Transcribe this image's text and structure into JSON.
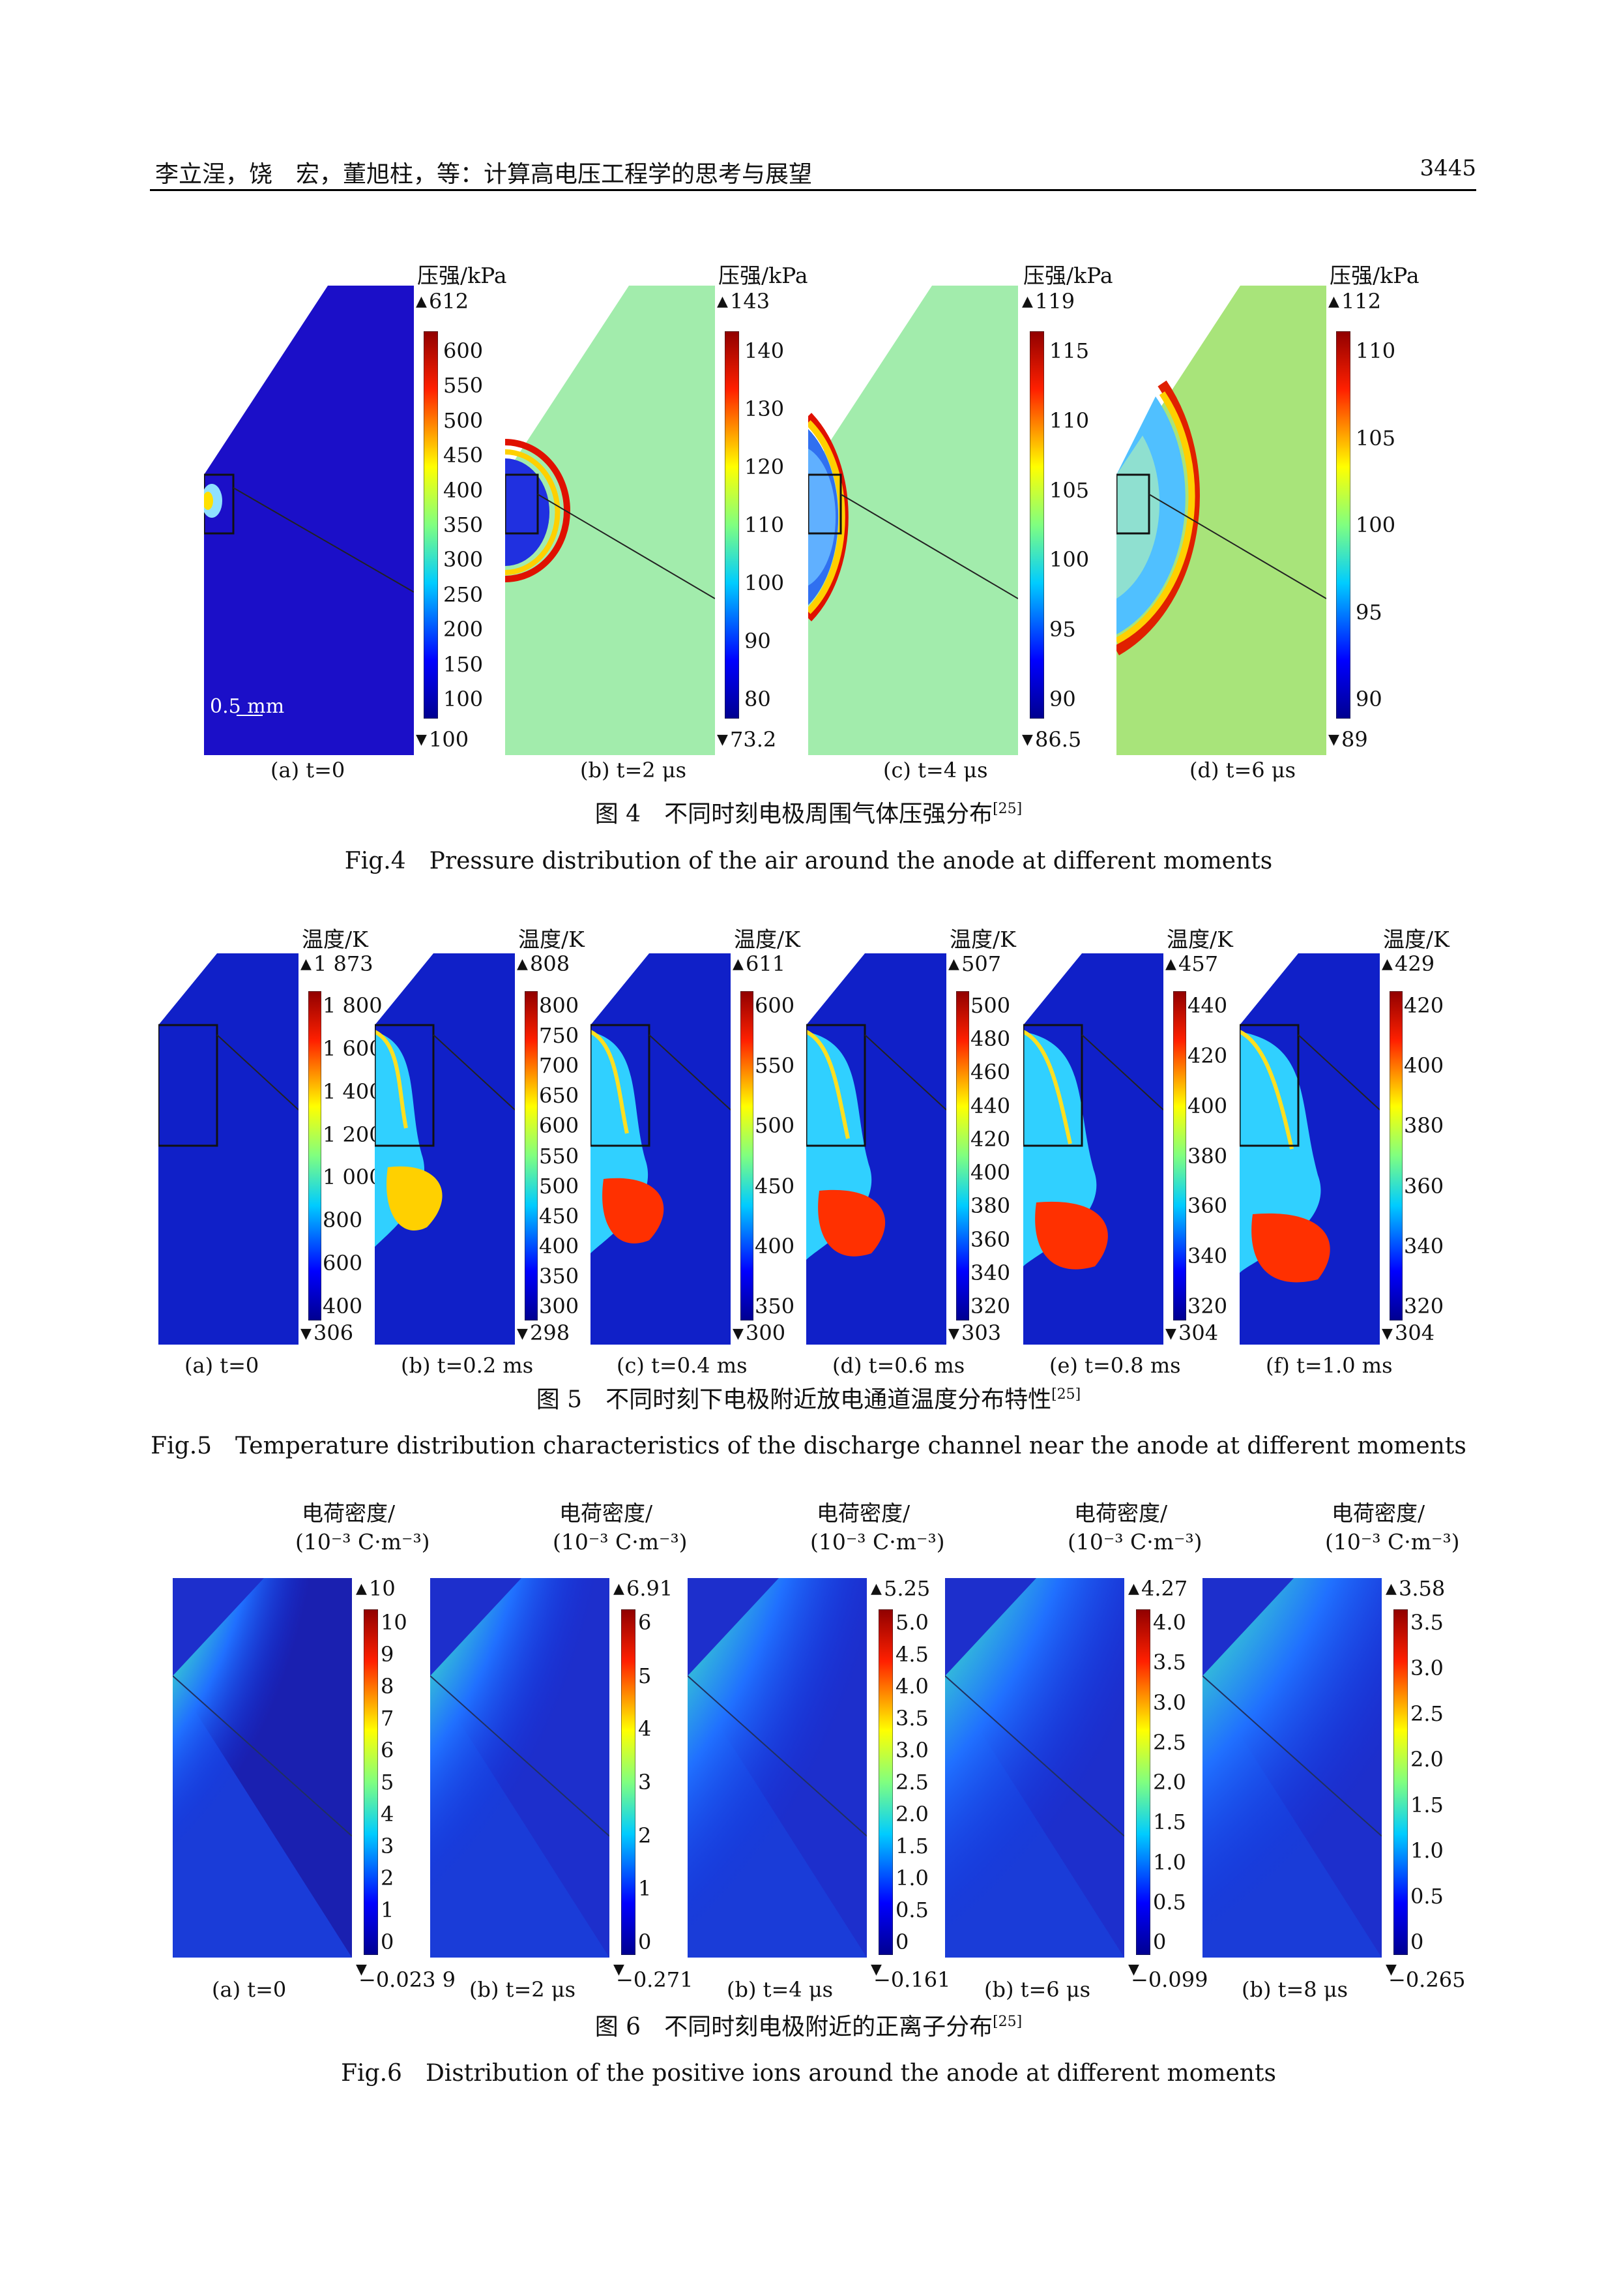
{
  "header": {
    "left": "李立浧，饶　宏，董旭柱，等：计算高电压工程学的思考与展望",
    "right": "3445"
  },
  "fig4": {
    "caption_cn": "图 4　不同时刻电极周围气体压强分布",
    "caption_cn_ref": "[25]",
    "caption_en": "Fig.4　Pressure distribution of the air around the anode at different moments",
    "scale_label": "0.5 mm",
    "panels": [
      {
        "label": "(a) t=0",
        "cb_title": "压强/kPa",
        "max": "612",
        "min": "100",
        "ticks": [
          "600",
          "550",
          "500",
          "450",
          "400",
          "350",
          "300",
          "250",
          "200",
          "150",
          "100"
        ]
      },
      {
        "label": "(b) t=2 μs",
        "cb_title": "压强/kPa",
        "max": "143",
        "min": "73.2",
        "ticks": [
          "140",
          "130",
          "120",
          "110",
          "100",
          "90",
          "80"
        ]
      },
      {
        "label": "(c) t=4 μs",
        "cb_title": "压强/kPa",
        "max": "119",
        "min": "86.5",
        "ticks": [
          "115",
          "110",
          "105",
          "100",
          "95",
          "90"
        ]
      },
      {
        "label": "(d) t=6 μs",
        "cb_title": "压强/kPa",
        "max": "112",
        "min": "89",
        "ticks": [
          "110",
          "105",
          "100",
          "95",
          "90"
        ]
      }
    ]
  },
  "fig5": {
    "caption_cn": "图 5　不同时刻下电极附近放电通道温度分布特性",
    "caption_cn_ref": "[25]",
    "caption_en": "Fig.5　Temperature distribution characteristics of the discharge channel near the anode at different moments",
    "panels": [
      {
        "label": "(a) t=0",
        "cb_title": "温度/K",
        "max": "1 873",
        "min": "306",
        "ticks": [
          "1 800",
          "1 600",
          "1 400",
          "1 200",
          "1 000",
          "800",
          "600",
          "400"
        ]
      },
      {
        "label": "(b) t=0.2 ms",
        "cb_title": "温度/K",
        "max": "808",
        "min": "298",
        "ticks": [
          "800",
          "750",
          "700",
          "650",
          "600",
          "550",
          "500",
          "450",
          "400",
          "350",
          "300"
        ]
      },
      {
        "label": "(c) t=0.4 ms",
        "cb_title": "温度/K",
        "max": "611",
        "min": "300",
        "ticks": [
          "600",
          "550",
          "500",
          "450",
          "400",
          "350"
        ]
      },
      {
        "label": "(d) t=0.6 ms",
        "cb_title": "温度/K",
        "max": "507",
        "min": "303",
        "ticks": [
          "500",
          "480",
          "460",
          "440",
          "420",
          "400",
          "380",
          "360",
          "340",
          "320"
        ]
      },
      {
        "label": "(e) t=0.8 ms",
        "cb_title": "温度/K",
        "max": "457",
        "min": "304",
        "ticks": [
          "440",
          "420",
          "400",
          "380",
          "360",
          "340",
          "320"
        ]
      },
      {
        "label": "(f) t=1.0 ms",
        "cb_title": "温度/K",
        "max": "429",
        "min": "304",
        "ticks": [
          "420",
          "400",
          "380",
          "360",
          "340",
          "320"
        ]
      }
    ]
  },
  "fig6": {
    "caption_cn": "图 6　不同时刻电极附近的正离子分布",
    "caption_cn_ref": "[25]",
    "caption_en": "Fig.6　Distribution of the positive ions around the anode at different moments",
    "cb_title_1": "电荷密度/",
    "cb_title_2": "(10⁻³ C·m⁻³)",
    "panels": [
      {
        "label": "(a) t=0",
        "max": "10",
        "min": "−0.023 9",
        "ticks": [
          "10",
          "9",
          "8",
          "7",
          "6",
          "5",
          "4",
          "3",
          "2",
          "1",
          "0"
        ]
      },
      {
        "label": "(b) t=2 μs",
        "max": "6.91",
        "min": "−0.271",
        "ticks": [
          "6",
          "5",
          "4",
          "3",
          "2",
          "1",
          "0"
        ]
      },
      {
        "label": "(b) t=4 μs",
        "max": "5.25",
        "min": "−0.161",
        "ticks": [
          "5.0",
          "4.5",
          "4.0",
          "3.5",
          "3.0",
          "2.5",
          "2.0",
          "1.5",
          "1.0",
          "0.5",
          "0"
        ]
      },
      {
        "label": "(b) t=6 μs",
        "max": "4.27",
        "min": "−0.099",
        "ticks": [
          "4.0",
          "3.5",
          "3.0",
          "2.5",
          "2.0",
          "1.5",
          "1.0",
          "0.5",
          "0"
        ]
      },
      {
        "label": "(b) t=8 μs",
        "max": "3.58",
        "min": "−0.265",
        "ticks": [
          "3.5",
          "3.0",
          "2.5",
          "2.0",
          "1.5",
          "1.0",
          "0.5",
          "0"
        ]
      }
    ]
  }
}
